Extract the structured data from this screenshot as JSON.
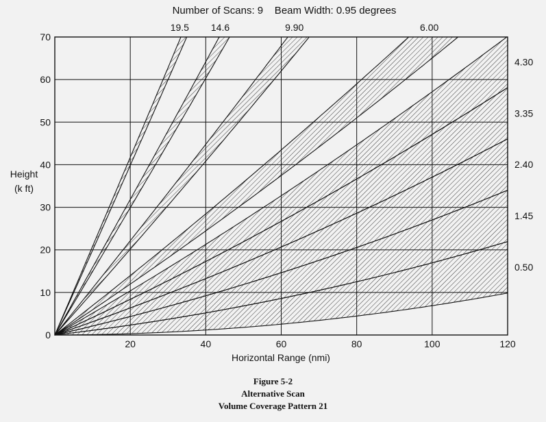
{
  "chart_data": {
    "type": "line",
    "title": "Number of Scans: 9    Beam Width: 0.95 degrees",
    "xlabel": "Horizontal Range (nmi)",
    "ylabel_line1": "Height",
    "ylabel_line2": "(k ft)",
    "xlim": [
      0,
      120
    ],
    "ylim": [
      0,
      70
    ],
    "x_ticks": [
      20,
      40,
      60,
      80,
      100,
      120
    ],
    "y_ticks": [
      0,
      10,
      20,
      30,
      40,
      50,
      60,
      70
    ],
    "grid": true,
    "beam_width_deg": 0.95,
    "beams": [
      {
        "label": "19.5",
        "label_position": "top",
        "elevation_deg": 19.5
      },
      {
        "label": "14.6",
        "label_position": "top",
        "elevation_deg": 14.6
      },
      {
        "label": "9.90",
        "label_position": "top",
        "elevation_deg": 9.9
      },
      {
        "label": "6.00",
        "label_position": "top",
        "elevation_deg": 6.0
      },
      {
        "label": "4.30",
        "label_position": "right",
        "elevation_deg": 4.3
      },
      {
        "label": "3.35",
        "label_position": "right",
        "elevation_deg": 3.35
      },
      {
        "label": "2.40",
        "label_position": "right",
        "elevation_deg": 2.4
      },
      {
        "label": "1.45",
        "label_position": "right",
        "elevation_deg": 1.45
      },
      {
        "label": "0.50",
        "label_position": "right",
        "elevation_deg": 0.5
      }
    ]
  },
  "caption": {
    "figure": "Figure 5-2",
    "line1": "Alternative Scan",
    "line2": "Volume Coverage Pattern 21"
  }
}
